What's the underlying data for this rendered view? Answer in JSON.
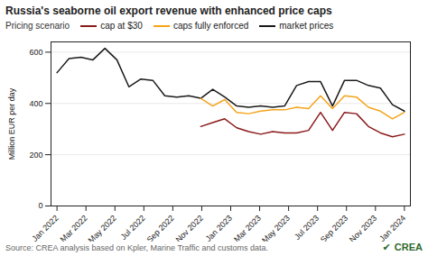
{
  "chart_data": {
    "type": "line",
    "title": "Russia's seaborne oil export revenue with enhanced price caps",
    "ylabel": "Million EUR per day",
    "source": "Source: CREA analysis based on Kpler, Marine Traffic and customs data.",
    "annotations": [
      {
        "text": "✔",
        "color": "#2d6a2d"
      },
      {
        "text": "CREA",
        "color": "#2d6a2d"
      }
    ],
    "legend_title": "Pricing scenario",
    "legend": "top",
    "grid": true,
    "x": [
      0,
      1,
      2,
      3,
      4,
      5,
      6,
      7,
      8,
      9,
      10,
      11,
      12,
      13,
      14,
      15,
      16,
      17,
      18,
      19,
      20,
      21,
      22,
      23,
      24,
      25,
      26,
      27,
      28,
      29
    ],
    "xlim": [
      -0.5,
      29.5
    ],
    "xticks": [
      {
        "value": 0,
        "label": "Jan 2022"
      },
      {
        "value": 2.4166666666666665,
        "label": "Mar 2022"
      },
      {
        "value": 4.833333333333333,
        "label": "May 2022"
      },
      {
        "value": 7.25,
        "label": "Jul 2022"
      },
      {
        "value": 9.666666666666666,
        "label": "Sep 2022"
      },
      {
        "value": 12.083333333333334,
        "label": "Nov 2022"
      },
      {
        "value": 14.5,
        "label": "Jan 2023"
      },
      {
        "value": 16.916666666666668,
        "label": "Mar 2023"
      },
      {
        "value": 19.333333333333332,
        "label": "May 2023"
      },
      {
        "value": 21.75,
        "label": "Jul 2023"
      },
      {
        "value": 24.166666666666668,
        "label": "Sep 2023"
      },
      {
        "value": 26.583333333333332,
        "label": "Nov 2023"
      },
      {
        "value": 29,
        "label": "Jan 2024"
      }
    ],
    "ylim": [
      0,
      640
    ],
    "yticks": [
      0,
      200,
      400,
      600
    ],
    "series": [
      {
        "name": "cap at $30",
        "color": "#8b1a1a",
        "values": [
          null,
          null,
          null,
          null,
          null,
          null,
          null,
          null,
          null,
          null,
          null,
          null,
          310,
          325,
          340,
          305,
          290,
          280,
          290,
          285,
          285,
          295,
          365,
          295,
          365,
          360,
          310,
          285,
          270,
          280
        ]
      },
      {
        "name": "caps fully enforced",
        "color": "#f5a31a",
        "values": [
          null,
          null,
          null,
          null,
          null,
          null,
          null,
          null,
          null,
          null,
          null,
          null,
          420,
          390,
          415,
          365,
          360,
          370,
          375,
          375,
          385,
          380,
          430,
          380,
          430,
          425,
          385,
          370,
          340,
          365
        ]
      },
      {
        "name": "market prices",
        "color": "#1a1a1a",
        "values": [
          520,
          575,
          580,
          570,
          615,
          570,
          465,
          495,
          490,
          430,
          425,
          430,
          420,
          455,
          425,
          390,
          385,
          390,
          385,
          390,
          470,
          485,
          485,
          390,
          490,
          490,
          470,
          460,
          395,
          370
        ]
      }
    ]
  }
}
